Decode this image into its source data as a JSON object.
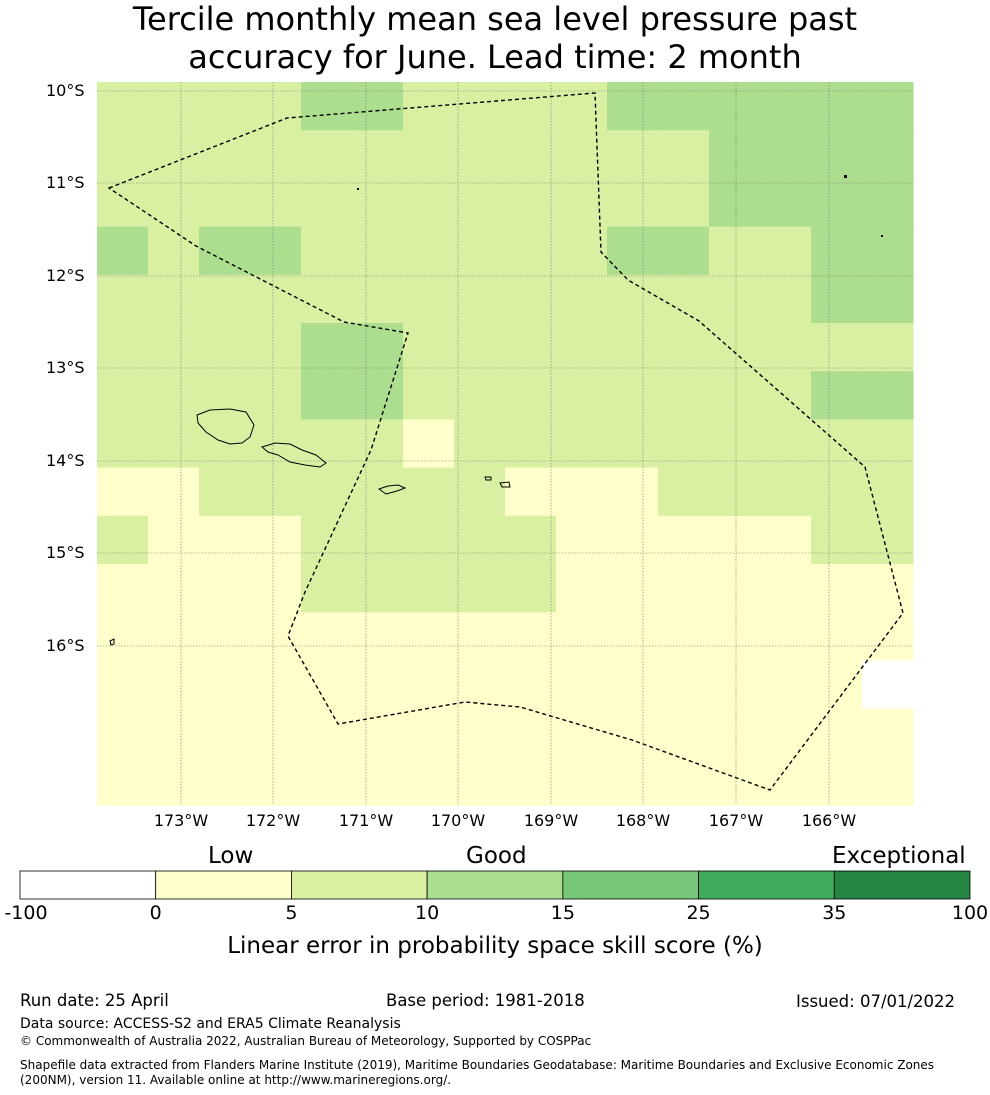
{
  "title": {
    "line1": "Tercile monthly mean sea level pressure past",
    "line2": "accuracy for June. Lead time: 2 month"
  },
  "map": {
    "lat_labels": [
      "10°S",
      "11°S",
      "12°S",
      "13°S",
      "14°S",
      "15°S",
      "16°S"
    ],
    "lon_labels": [
      "173°W",
      "172°W",
      "171°W",
      "170°W",
      "169°W",
      "168°W",
      "167°W",
      "166°W"
    ],
    "skill_grid_score_classes": [
      [
        5,
        5,
        5,
        5,
        10,
        10,
        5,
        5,
        5,
        5,
        10,
        10,
        10,
        10,
        10,
        10
      ],
      [
        5,
        5,
        5,
        5,
        5,
        5,
        5,
        5,
        5,
        5,
        5,
        5,
        10,
        10,
        10,
        10
      ],
      [
        5,
        5,
        5,
        5,
        5,
        5,
        5,
        5,
        5,
        5,
        5,
        5,
        10,
        10,
        10,
        10
      ],
      [
        10,
        5,
        10,
        10,
        5,
        5,
        5,
        5,
        5,
        5,
        10,
        10,
        5,
        5,
        10,
        10
      ],
      [
        5,
        5,
        5,
        5,
        5,
        5,
        5,
        5,
        5,
        5,
        5,
        5,
        5,
        5,
        10,
        10
      ],
      [
        5,
        5,
        5,
        5,
        10,
        10,
        5,
        5,
        5,
        5,
        5,
        5,
        5,
        5,
        5,
        5
      ],
      [
        5,
        5,
        5,
        5,
        10,
        10,
        5,
        5,
        5,
        5,
        5,
        5,
        5,
        5,
        10,
        10
      ],
      [
        5,
        5,
        5,
        5,
        5,
        5,
        0,
        5,
        5,
        5,
        5,
        5,
        5,
        5,
        5,
        5
      ],
      [
        0,
        0,
        5,
        5,
        5,
        5,
        5,
        5,
        0,
        0,
        0,
        5,
        5,
        5,
        5,
        5
      ],
      [
        5,
        0,
        0,
        0,
        5,
        5,
        5,
        5,
        5,
        0,
        0,
        0,
        0,
        0,
        5,
        5
      ],
      [
        0,
        0,
        0,
        0,
        5,
        5,
        5,
        5,
        5,
        0,
        0,
        0,
        0,
        0,
        0,
        0
      ],
      [
        0,
        0,
        0,
        0,
        0,
        0,
        0,
        0,
        0,
        0,
        0,
        0,
        0,
        0,
        0,
        0
      ],
      [
        0,
        0,
        0,
        0,
        0,
        0,
        0,
        0,
        0,
        0,
        0,
        0,
        0,
        0,
        0,
        -100
      ],
      [
        0,
        0,
        0,
        0,
        0,
        0,
        0,
        0,
        0,
        0,
        0,
        0,
        0,
        0,
        0,
        0
      ],
      [
        0,
        0,
        0,
        0,
        0,
        0,
        0,
        0,
        0,
        0,
        0,
        0,
        0,
        0,
        0,
        0
      ]
    ]
  },
  "colorbar": {
    "categories": [
      "Low",
      "Good",
      "Exceptional"
    ],
    "ticks": [
      "-100",
      "0",
      "5",
      "10",
      "15",
      "25",
      "35",
      "100"
    ],
    "colors": [
      "#ffffff",
      "#ffffcc",
      "#d9f0a3",
      "#addd8e",
      "#78c679",
      "#41ab5d",
      "#238443"
    ],
    "label": "Linear error in probability space skill score (%)"
  },
  "footer": {
    "run_date": "Run date: 25 April",
    "base_period": "Base period: 1981-2018",
    "issued": "Issued: 07/01/2022",
    "data_source": "Data source: ACCESS-S2 and ERA5 Climate Reanalysis",
    "copyright": "© Commonwealth of Australia 2022, Australian Bureau of Meteorology, Supported by COSPPac",
    "shapefile_line1": "Shapefile data extracted from Flanders Marine Institute (2019), Maritime Boundaries Geodatabase: Maritime Boundaries and Exclusive Economic Zones",
    "shapefile_line2": "(200NM), version 11. Available online at http://www.marineregions.org/."
  }
}
